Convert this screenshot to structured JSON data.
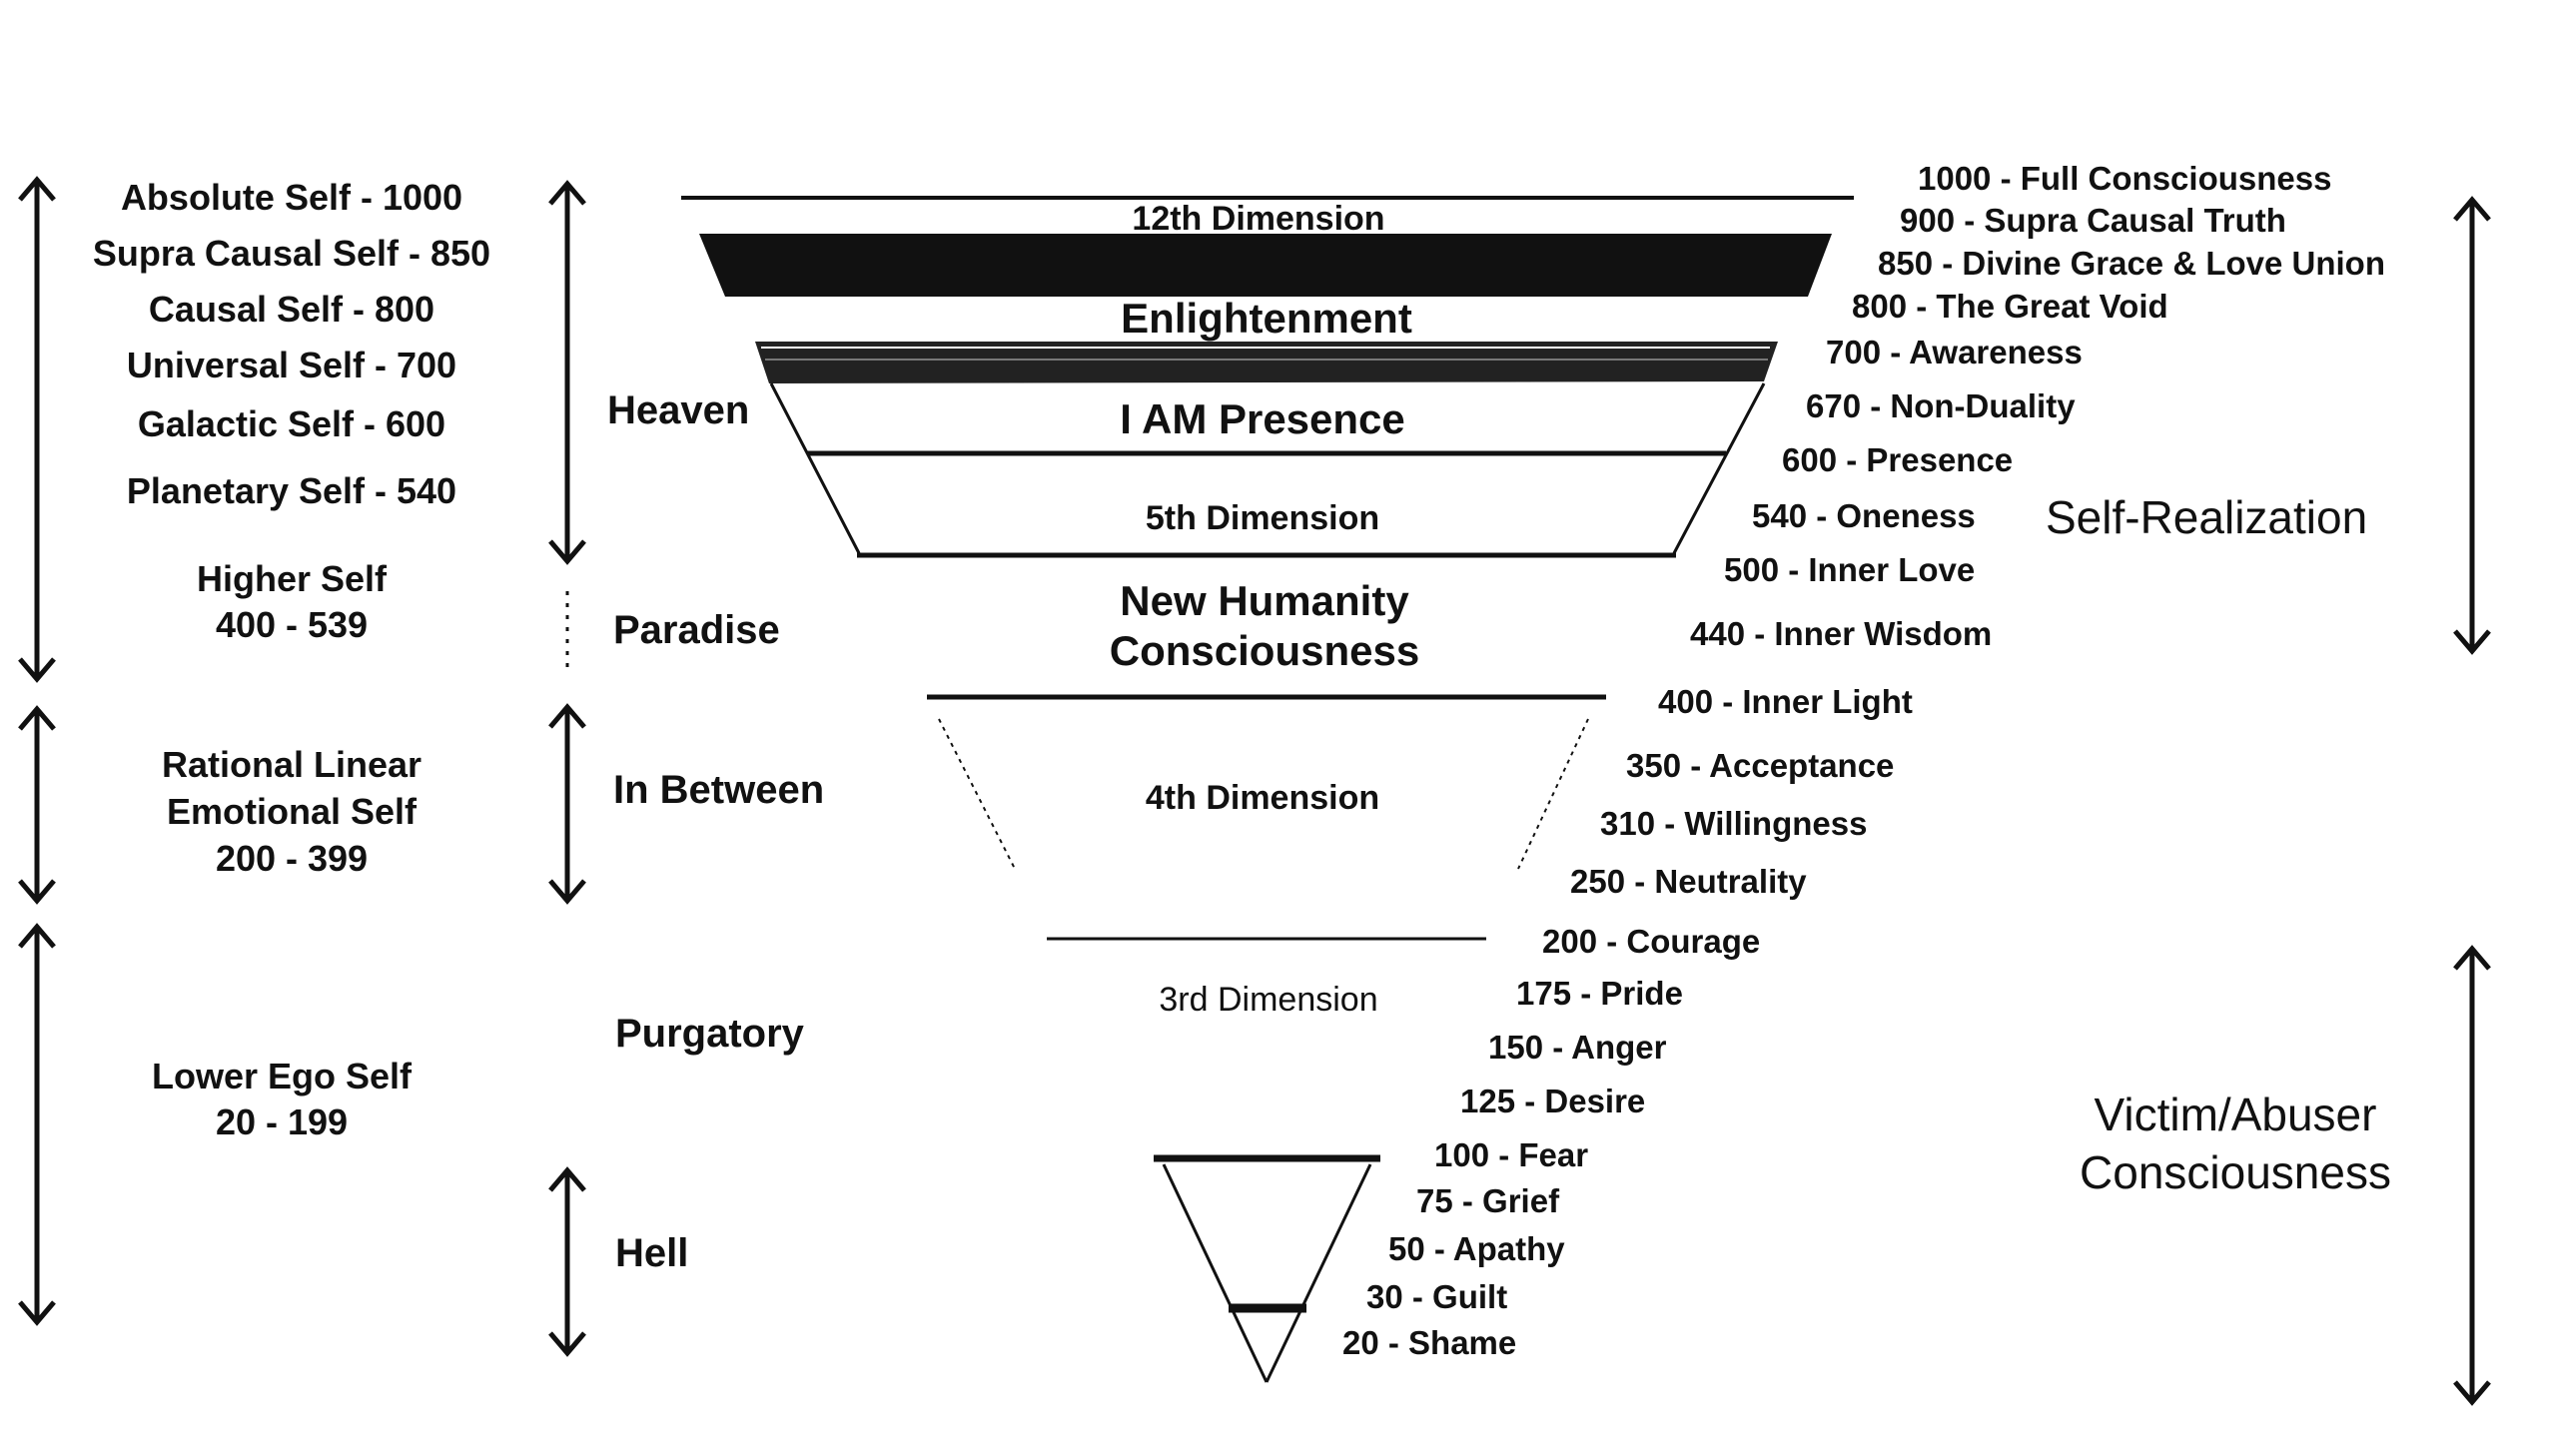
{
  "self_levels": [
    {
      "label": "Absolute Self - 1000"
    },
    {
      "label": "Supra Causal Self - 850"
    },
    {
      "label": "Causal Self - 800"
    },
    {
      "label": "Universal Self - 700"
    },
    {
      "label": "Galactic Self - 600"
    },
    {
      "label": "Planetary Self - 540"
    },
    {
      "line1": "Higher Self",
      "line2": "400 - 539"
    },
    {
      "line1": "Rational Linear",
      "line2": "Emotional Self",
      "line3": "200 - 399"
    },
    {
      "line1": "Lower Ego Self",
      "line2": "20 - 199"
    }
  ],
  "realms": [
    "Heaven",
    "Paradise",
    "In Between",
    "Purgatory",
    "Hell"
  ],
  "dimensions": {
    "d12": "12th Dimension",
    "enlightenment": "Enlightenment",
    "iam": "I AM Presence",
    "d5": "5th Dimension",
    "nh1": "New Humanity",
    "nh2": "Consciousness",
    "d4": "4th Dimension",
    "d3": "3rd Dimension"
  },
  "levels": [
    "1000 - Full Consciousness",
    "900 - Supra Causal Truth",
    "850 - Divine Grace & Love Union",
    "800 - The Great Void",
    "700 - Awareness",
    "670 - Non-Duality",
    "600 - Presence",
    "540 - Oneness",
    "500 - Inner Love",
    "440 - Inner Wisdom",
    "400 - Inner Light",
    "350 - Acceptance",
    "310 - Willingness",
    "250 - Neutrality",
    "200 - Courage",
    "175 - Pride",
    "150 - Anger",
    "125 - Desire",
    "100 - Fear",
    "75 - Grief",
    "50 - Apathy",
    "30 - Guilt",
    "20 - Shame"
  ],
  "right_labels": {
    "self_realization": "Self-Realization",
    "victim1": "Victim/Abuser",
    "victim2": "Consciousness"
  },
  "colors": {
    "ink": "#111111",
    "background": "#ffffff"
  }
}
